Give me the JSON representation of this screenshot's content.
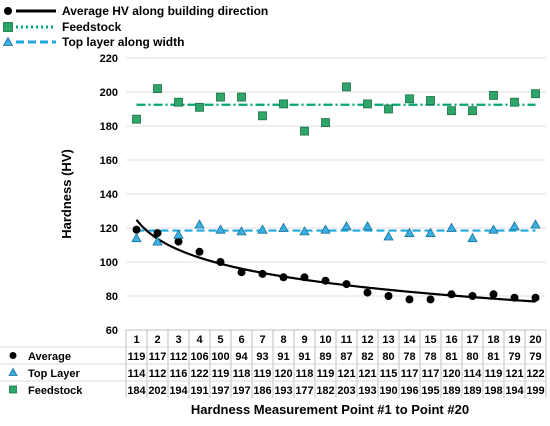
{
  "chart_data": {
    "type": "scatter",
    "ylabel": "Hardness (HV)",
    "xlabel": "Hardness Measurement Point #1 to Point #20",
    "ylim": [
      60,
      220
    ],
    "yticks": [
      60,
      80,
      100,
      120,
      140,
      160,
      180,
      200,
      220
    ],
    "grid": true,
    "categories": [
      "1",
      "2",
      "3",
      "4",
      "5",
      "6",
      "7",
      "8",
      "9",
      "10",
      "11",
      "12",
      "13",
      "14",
      "15",
      "16",
      "17",
      "18",
      "19",
      "20"
    ],
    "legend": {
      "placement": "top-left",
      "entries": [
        {
          "label": "Average HV along building direction",
          "marker": "circle",
          "line": "solid",
          "color": "#000000"
        },
        {
          "label": "Feedstock",
          "marker": "square",
          "line": "dotted",
          "color": "#00a66e"
        },
        {
          "label": "Top layer along width",
          "marker": "triangle",
          "line": "dashed",
          "color": "#1ea7e0"
        }
      ]
    },
    "series": [
      {
        "name": "Average",
        "marker": "circle",
        "color": "#000000",
        "values": [
          119,
          117,
          112,
          106,
          100,
          94,
          93,
          91,
          91,
          89,
          87,
          82,
          80,
          78,
          78,
          81,
          80,
          81,
          79,
          79
        ]
      },
      {
        "name": "Top Layer",
        "marker": "triangle",
        "color": "#3ab0e0",
        "values": [
          114,
          112,
          116,
          122,
          119,
          118,
          119,
          120,
          118,
          119,
          121,
          121,
          115,
          117,
          117,
          120,
          114,
          119,
          121,
          122
        ]
      },
      {
        "name": "Feedstock",
        "marker": "square",
        "color": "#2ea66a",
        "values": [
          184,
          202,
          194,
          191,
          197,
          197,
          186,
          193,
          177,
          182,
          203,
          193,
          190,
          196,
          195,
          189,
          189,
          198,
          194,
          199
        ]
      }
    ],
    "reference_lines": [
      {
        "series": "Feedstock",
        "y": 192.5,
        "style": "dash-dot",
        "color": "#00a66e"
      },
      {
        "series": "Top Layer",
        "y": 118.5,
        "style": "dashed",
        "color": "#1ea7e0"
      }
    ],
    "trend": {
      "series": "Average",
      "style": "solid",
      "color": "#000000"
    }
  }
}
